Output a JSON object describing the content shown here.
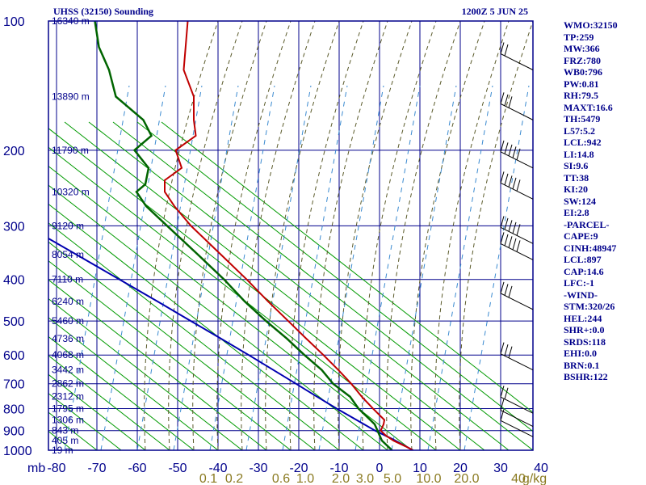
{
  "header": {
    "station": "UHSS (32150) Sounding",
    "time": "1200Z  5 JUN 25"
  },
  "indices": [
    "WMO:32150",
    "TP:259",
    "MW:366",
    "FRZ:780",
    "WB0:796",
    "PW:0.81",
    "RH:79.5",
    "MAXT:16.6",
    "TH:5479",
    "L57:5.2",
    "LCL:942",
    "LI:14.8",
    "SI:9.6",
    "TT:38",
    "KI:20",
    "SW:124",
    "EI:2.8",
    "-PARCEL-",
    "CAPE:9",
    "CINH:48947",
    "LCL:897",
    "CAP:14.6",
    "LFC:-1",
    "-WIND-",
    "STM:320/26",
    "HEL:244",
    "SHR+:0.0",
    "SRDS:118",
    "EHI:0.0",
    "BRN:0.1",
    "BSHR:122"
  ],
  "colors": {
    "frame": "#00008b",
    "isobar": "#00008b",
    "isotherm": "#00008b",
    "dry_adiabat": "#009a00",
    "moist_adiabat": "#5a5a2a",
    "mixing_ratio": "#3a8ad0",
    "temperature": "#c00000",
    "dewpoint": "#006400",
    "parcel": "#0000b0",
    "mixing_label": "#8a7a20"
  },
  "chart_data": {
    "type": "line",
    "diagram": "skew-T log-P",
    "pressure_levels": [
      100,
      200,
      300,
      400,
      500,
      600,
      700,
      800,
      900,
      1000
    ],
    "pressure_labels": [
      "100",
      "200",
      "300",
      "400",
      "500",
      "600",
      "700",
      "800",
      "900",
      "1000"
    ],
    "pressure_prefix": "mb",
    "temperature_ticks": [
      -80,
      -70,
      -60,
      -50,
      -40,
      -30,
      -20,
      -10,
      0,
      10,
      20,
      30,
      40
    ],
    "temperature_tick_labels": [
      "-80",
      "-70",
      "-60",
      "-50",
      "-40",
      "-30",
      "-20",
      "-10",
      "0",
      "10",
      "20",
      "30",
      "40"
    ],
    "height_labels": [
      {
        "p": 100,
        "label": "16340 m"
      },
      {
        "p": 150,
        "label": "13890 m"
      },
      {
        "p": 200,
        "label": "11790 m"
      },
      {
        "p": 250,
        "label": "10320 m"
      },
      {
        "p": 300,
        "label": "9120 m"
      },
      {
        "p": 350,
        "label": "8054 m"
      },
      {
        "p": 400,
        "label": "7110 m"
      },
      {
        "p": 450,
        "label": "6240 m"
      },
      {
        "p": 500,
        "label": "5460 m"
      },
      {
        "p": 550,
        "label": "4736 m"
      },
      {
        "p": 600,
        "label": "4068 m"
      },
      {
        "p": 650,
        "label": "3442 m"
      },
      {
        "p": 700,
        "label": "2862 m"
      },
      {
        "p": 750,
        "label": "2312 m"
      },
      {
        "p": 800,
        "label": "1795 m"
      },
      {
        "p": 850,
        "label": "1306 m"
      },
      {
        "p": 900,
        "label": "843 m"
      },
      {
        "p": 950,
        "label": "405 m"
      },
      {
        "p": 1000,
        "label": "19 m"
      }
    ],
    "mixing_ratio_labels": [
      "0.1",
      "0.2",
      "0.6",
      "1.0",
      "2.0",
      "3.0",
      "5.0",
      "10.0",
      "20.0",
      "40",
      "g/kg"
    ],
    "temperature": [
      [
        1000,
        8.3
      ],
      [
        980,
        6.5
      ],
      [
        950,
        3.5
      ],
      [
        925,
        1.6
      ],
      [
        900,
        0.3
      ],
      [
        870,
        1.0
      ],
      [
        850,
        1.2
      ],
      [
        800,
        -1.6
      ],
      [
        750,
        -4.4
      ],
      [
        700,
        -7.0
      ],
      [
        650,
        -10.2
      ],
      [
        600,
        -13.9
      ],
      [
        550,
        -18.1
      ],
      [
        500,
        -22.6
      ],
      [
        450,
        -27.6
      ],
      [
        400,
        -32.9
      ],
      [
        350,
        -39.3
      ],
      [
        300,
        -46.7
      ],
      [
        270,
        -50.8
      ],
      [
        250,
        -53.2
      ],
      [
        235,
        -53.2
      ],
      [
        220,
        -49.0
      ],
      [
        200,
        -50.5
      ],
      [
        185,
        -45.5
      ],
      [
        170,
        -46.0
      ],
      [
        150,
        -46.0
      ],
      [
        130,
        -48.5
      ],
      [
        100,
        -47.5
      ]
    ],
    "dewpoint": [
      [
        1000,
        3.1
      ],
      [
        950,
        0.6
      ],
      [
        900,
        -0.5
      ],
      [
        870,
        -1.2
      ],
      [
        850,
        -2.3
      ],
      [
        800,
        -5.2
      ],
      [
        750,
        -7.3
      ],
      [
        700,
        -11.5
      ],
      [
        650,
        -14.3
      ],
      [
        600,
        -18.6
      ],
      [
        550,
        -22.9
      ],
      [
        500,
        -28.1
      ],
      [
        450,
        -33.4
      ],
      [
        400,
        -38.5
      ],
      [
        350,
        -45.0
      ],
      [
        300,
        -52.6
      ],
      [
        270,
        -57.8
      ],
      [
        250,
        -60.2
      ],
      [
        240,
        -58.0
      ],
      [
        220,
        -57.2
      ],
      [
        200,
        -60.7
      ],
      [
        185,
        -56.5
      ],
      [
        170,
        -58.5
      ],
      [
        150,
        -65.3
      ],
      [
        130,
        -67.0
      ],
      [
        115,
        -69.5
      ],
      [
        100,
        -70.5
      ]
    ],
    "parcel": [
      [
        1000,
        8.3
      ],
      [
        942,
        3.2
      ],
      [
        900,
        -1.1
      ],
      [
        850,
        -5.7
      ],
      [
        800,
        -10.6
      ],
      [
        750,
        -15.5
      ],
      [
        700,
        -20.7
      ],
      [
        650,
        -26.3
      ],
      [
        600,
        -32.4
      ],
      [
        550,
        -39.2
      ],
      [
        500,
        -46.7
      ],
      [
        450,
        -55.0
      ],
      [
        400,
        -64.4
      ],
      [
        350,
        -75.1
      ],
      [
        300,
        -87.4
      ],
      [
        263,
        -97.4
      ]
    ],
    "wind_barbs": [
      {
        "p": 130,
        "speed": 20
      },
      {
        "p": 170,
        "speed": 30
      },
      {
        "p": 220,
        "speed": 55
      },
      {
        "p": 260,
        "speed": 55
      },
      {
        "p": 330,
        "speed": 50
      },
      {
        "p": 360,
        "speed": 55
      },
      {
        "p": 470,
        "speed": 25
      },
      {
        "p": 650,
        "speed": 25
      },
      {
        "p": 820,
        "speed": 15
      },
      {
        "p": 880,
        "speed": 10
      },
      {
        "p": 930,
        "speed": 10
      }
    ]
  }
}
